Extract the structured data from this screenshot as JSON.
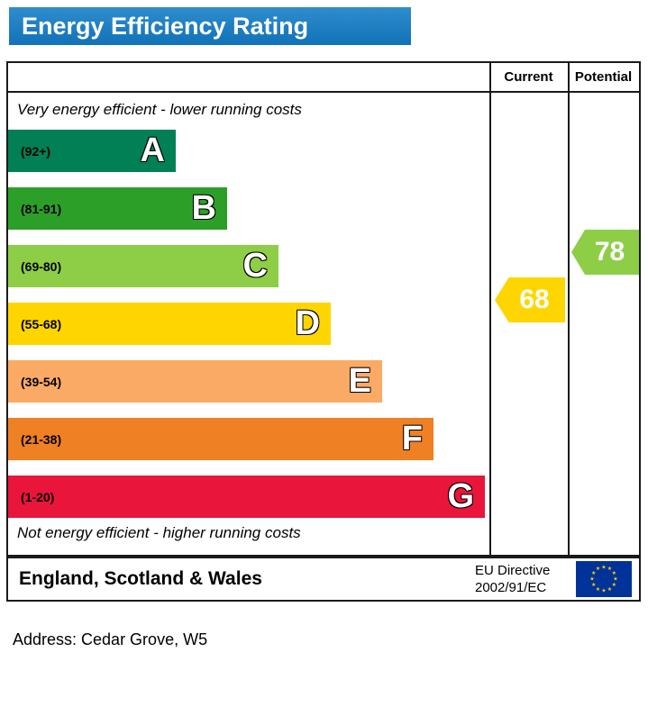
{
  "title": "Energy Efficiency Rating",
  "header": {
    "current_label": "Current",
    "potential_label": "Potential"
  },
  "top_note": "Very energy efficient - lower running costs",
  "bottom_note": "Not energy efficient - higher running costs",
  "bands": [
    {
      "letter": "A",
      "range": "(92+)",
      "color": "#008054"
    },
    {
      "letter": "B",
      "range": "(81-91)",
      "color": "#2c9f29"
    },
    {
      "letter": "C",
      "range": "(69-80)",
      "color": "#8dce46"
    },
    {
      "letter": "D",
      "range": "(55-68)",
      "color": "#ffd500"
    },
    {
      "letter": "E",
      "range": "(39-54)",
      "color": "#fbaa65"
    },
    {
      "letter": "F",
      "range": "(21-38)",
      "color": "#ef8023"
    },
    {
      "letter": "G",
      "range": "(1-20)",
      "color": "#e9153b"
    }
  ],
  "current": {
    "value": "68",
    "color": "#ffd500"
  },
  "potential": {
    "value": "78",
    "color": "#8dce46"
  },
  "footer": {
    "region": "England, Scotland & Wales",
    "directive_line1": "EU Directive",
    "directive_line2": "2002/91/EC"
  },
  "address": "Address: Cedar Grove, W5",
  "chart_data": {
    "type": "bar",
    "title": "Energy Efficiency Rating",
    "categories": [
      "A",
      "B",
      "C",
      "D",
      "E",
      "F",
      "G"
    ],
    "band_ranges": [
      "92+",
      "81-91",
      "69-80",
      "55-68",
      "39-54",
      "21-38",
      "1-20"
    ],
    "band_colors": [
      "#008054",
      "#2c9f29",
      "#8dce46",
      "#ffd500",
      "#fbaa65",
      "#ef8023",
      "#e9153b"
    ],
    "top_label": "Very energy efficient - lower running costs",
    "bottom_label": "Not energy efficient - higher running costs",
    "current": 68,
    "current_band": "D",
    "potential": 78,
    "potential_band": "C",
    "region": "England, Scotland & Wales",
    "directive": "EU Directive 2002/91/EC"
  }
}
